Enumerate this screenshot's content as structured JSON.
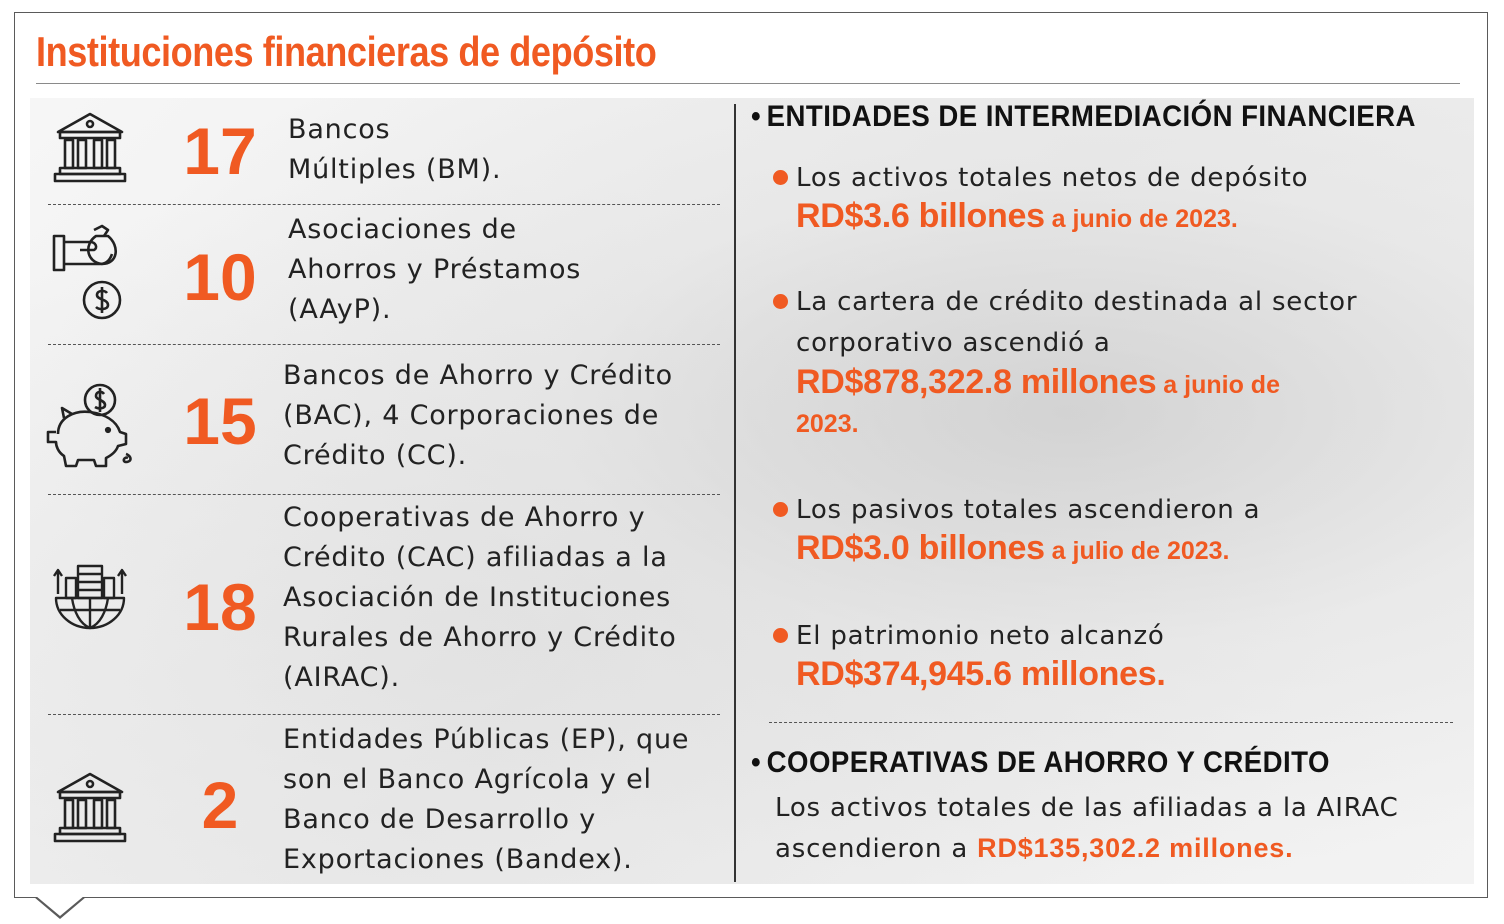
{
  "title": "Instituciones financieras de depósito",
  "institutions": [
    {
      "icon": "bank-building-icon",
      "count": "17",
      "lines": [
        "Bancos",
        "Múltiples (BM)."
      ]
    },
    {
      "icon": "hand-money-bag-icon",
      "count": "10",
      "lines": [
        "Asociaciones de",
        "Ahorros y Préstamos",
        "(AAyP)."
      ]
    },
    {
      "icon": "piggy-bank-icon",
      "count": "15",
      "lines": [
        "Bancos de Ahorro y Crédito",
        "(BAC), 4 Corporaciones de",
        "Crédito (CC)."
      ]
    },
    {
      "icon": "globe-buildings-icon",
      "count": "18",
      "lines": [
        "Cooperativas de Ahorro y",
        "Crédito (CAC) afiliadas a la",
        "Asociación de Instituciones",
        "Rurales de Ahorro y Crédito",
        "(AIRAC)."
      ]
    },
    {
      "icon": "bank-building-icon",
      "count": "2",
      "lines": [
        "Entidades Públicas (EP), que",
        "son el Banco Agrícola y el",
        "Banco de Desarrollo y",
        "Exportaciones (Bandex)."
      ]
    }
  ],
  "intermediacion": {
    "heading": "ENTIDADES DE INTERMEDIACIÓN FINANCIERA",
    "bullet": "•",
    "items": [
      {
        "text": [
          "Los activos totales netos de depósito"
        ],
        "highlight": "RD$3.6 billones",
        "suffix": " a junio de 2023.",
        "suffix2": ""
      },
      {
        "text": [
          "La cartera de crédito destinada al sector",
          "corporativo ascendió a"
        ],
        "highlight": "RD$878,322.8 millones",
        "suffix": " a junio de",
        "suffix2": "2023."
      },
      {
        "text": [
          "Los pasivos totales  ascendieron a"
        ],
        "highlight": "RD$3.0 billones",
        "suffix": " a julio de 2023.",
        "suffix2": ""
      },
      {
        "text": [
          "El patrimonio neto alcanzó"
        ],
        "highlight": "RD$374,945.6 millones.",
        "suffix": "",
        "suffix2": ""
      }
    ]
  },
  "cooperativas": {
    "heading": "COOPERATIVAS DE AHORRO Y CRÉDITO",
    "line1": "Los activos totales de las  afiliadas a la AIRAC",
    "line2_prefix": "ascendieron a ",
    "value": "RD$135,302.2 millones."
  },
  "colors": {
    "accent": "#f05a22",
    "text": "#222222",
    "rule": "#555555"
  }
}
